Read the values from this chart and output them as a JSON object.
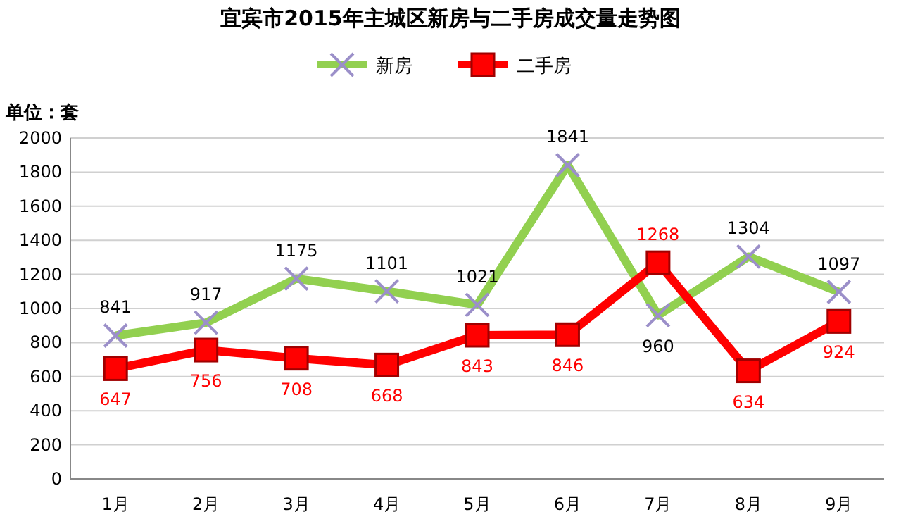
{
  "chart_data": {
    "type": "line",
    "title": "宜宾市2015年主城区新房与二手房成交量走势图",
    "ylabel": "单位：套",
    "categories": [
      "1月",
      "2月",
      "3月",
      "4月",
      "5月",
      "6月",
      "7月",
      "8月",
      "9月"
    ],
    "series": [
      {
        "name": "新房",
        "color": "#92d050",
        "marker": "cross",
        "values": [
          841,
          917,
          1175,
          1101,
          1021,
          1841,
          960,
          1304,
          1097
        ]
      },
      {
        "name": "二手房",
        "color": "#ff0000",
        "marker": "square",
        "values": [
          647,
          756,
          708,
          668,
          843,
          846,
          1268,
          634,
          924
        ]
      }
    ],
    "ylim": [
      0,
      2000
    ],
    "yticks": [
      0,
      200,
      400,
      600,
      800,
      1000,
      1200,
      1400,
      1600,
      1800,
      2000
    ],
    "grid": "y",
    "legend": "top",
    "data_labels": true
  }
}
